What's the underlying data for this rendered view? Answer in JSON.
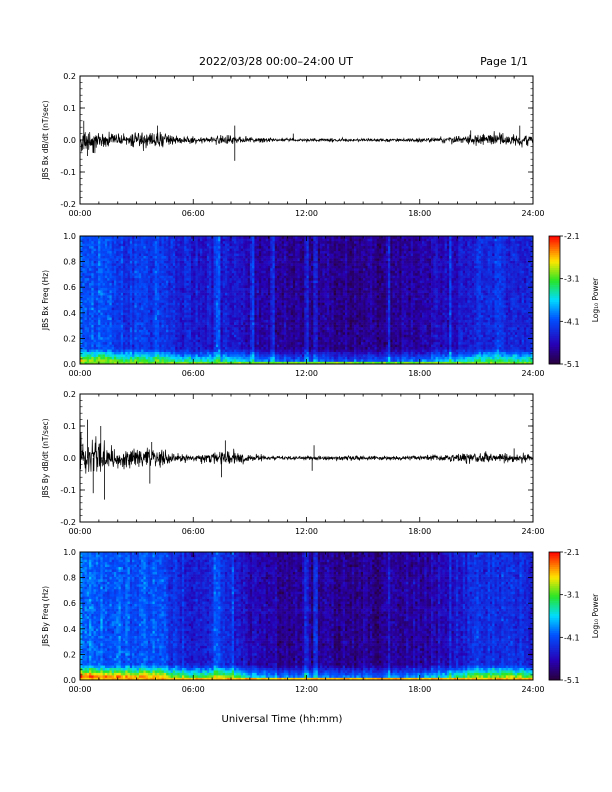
{
  "header": {
    "title": "2022/03/28  00:00–24:00 UT",
    "page": "Page 1/1"
  },
  "x_axis_title": "Universal Time (hh:mm)",
  "chart_data": [
    {
      "type": "line",
      "ylabel": "JBS Bx dB/dt (nT/sec)",
      "xlim": [
        0,
        24
      ],
      "ylim": [
        -0.2,
        0.2
      ],
      "xticks": [
        "00:00",
        "06:00",
        "12:00",
        "18:00",
        "24:00"
      ],
      "yticks": [
        "0.2",
        "0.1",
        "0.0",
        "-0.1",
        "-0.2"
      ],
      "envelope_x": [
        0,
        1,
        2,
        3,
        4,
        5,
        6,
        7,
        8,
        9,
        10,
        11,
        12,
        13,
        14,
        15,
        16,
        17,
        18,
        19,
        20,
        21,
        22,
        23,
        24
      ],
      "envelope_amp": [
        0.045,
        0.04,
        0.028,
        0.032,
        0.036,
        0.022,
        0.014,
        0.016,
        0.022,
        0.012,
        0.008,
        0.006,
        0.005,
        0.008,
        0.007,
        0.006,
        0.006,
        0.007,
        0.01,
        0.012,
        0.016,
        0.025,
        0.03,
        0.028,
        0.02
      ],
      "spikes": [
        [
          0.2,
          0.06
        ],
        [
          0.4,
          -0.05
        ],
        [
          4.1,
          0.045
        ],
        [
          8.2,
          -0.065
        ],
        [
          8.2,
          0.045
        ],
        [
          11.3,
          0.02
        ],
        [
          23.3,
          0.045
        ],
        [
          20.7,
          0.03
        ]
      ]
    },
    {
      "type": "heatmap",
      "ylabel": "JBS Bx Freq (Hz)",
      "xlim": [
        0,
        24
      ],
      "ylim": [
        0,
        1.0
      ],
      "xticks": [
        "00:00",
        "06:00",
        "12:00",
        "18:00",
        "24:00"
      ],
      "yticks": [
        "1.0",
        "0.8",
        "0.6",
        "0.4",
        "0.2",
        "0.0"
      ],
      "colorbar": {
        "label": "Log₁₀ Power",
        "min": -5.1,
        "max": -2.1,
        "ticks": [
          "-2.1",
          "-3.1",
          "-4.1",
          "-5.1"
        ]
      },
      "activity_x": [
        0,
        1,
        2,
        3,
        4,
        5,
        6,
        7,
        8,
        9,
        10,
        11,
        12,
        13,
        14,
        15,
        16,
        17,
        18,
        19,
        20,
        21,
        22,
        23,
        24
      ],
      "activity": [
        0.85,
        0.8,
        0.7,
        0.65,
        0.7,
        0.55,
        0.45,
        0.4,
        0.45,
        0.3,
        0.2,
        0.15,
        0.12,
        0.12,
        0.12,
        0.12,
        0.12,
        0.15,
        0.2,
        0.3,
        0.4,
        0.55,
        0.6,
        0.55,
        0.5
      ],
      "stripes_h": [
        7.2,
        7.4,
        9.1,
        10.2,
        12.0,
        12.5,
        16.4,
        19.6
      ],
      "low_freq_power": -3.0
    },
    {
      "type": "line",
      "ylabel": "JBS By dB/dt (nT/sec)",
      "xlim": [
        0,
        24
      ],
      "ylim": [
        -0.2,
        0.2
      ],
      "xticks": [
        "00:00",
        "06:00",
        "12:00",
        "18:00",
        "24:00"
      ],
      "yticks": [
        "0.2",
        "0.1",
        "0.0",
        "-0.1",
        "-0.2"
      ],
      "envelope_x": [
        0,
        1,
        2,
        3,
        4,
        5,
        6,
        7,
        8,
        9,
        10,
        11,
        12,
        13,
        14,
        15,
        16,
        17,
        18,
        19,
        20,
        21,
        22,
        23,
        24
      ],
      "envelope_amp": [
        0.08,
        0.07,
        0.045,
        0.035,
        0.04,
        0.02,
        0.012,
        0.025,
        0.035,
        0.015,
        0.01,
        0.008,
        0.008,
        0.01,
        0.01,
        0.008,
        0.008,
        0.009,
        0.012,
        0.012,
        0.018,
        0.02,
        0.022,
        0.02,
        0.015
      ],
      "spikes": [
        [
          0.4,
          0.12
        ],
        [
          0.7,
          -0.11
        ],
        [
          1.3,
          -0.13
        ],
        [
          1.1,
          0.1
        ],
        [
          3.7,
          -0.08
        ],
        [
          3.8,
          0.05
        ],
        [
          7.5,
          -0.06
        ],
        [
          7.7,
          0.055
        ],
        [
          12.4,
          0.04
        ],
        [
          12.3,
          -0.04
        ],
        [
          23.0,
          0.03
        ]
      ]
    },
    {
      "type": "heatmap",
      "ylabel": "JBS By Freq (Hz)",
      "xlim": [
        0,
        24
      ],
      "ylim": [
        0,
        1.0
      ],
      "xticks": [
        "00:00",
        "06:00",
        "12:00",
        "18:00",
        "24:00"
      ],
      "yticks": [
        "1.0",
        "0.8",
        "0.6",
        "0.4",
        "0.2",
        "0.0"
      ],
      "colorbar": {
        "label": "Log₁₀ Power",
        "min": -5.1,
        "max": -2.1,
        "ticks": [
          "-2.1",
          "-3.1",
          "-4.1",
          "-5.1"
        ]
      },
      "activity_x": [
        0,
        1,
        2,
        3,
        4,
        5,
        6,
        7,
        8,
        9,
        10,
        11,
        12,
        13,
        14,
        15,
        16,
        17,
        18,
        19,
        20,
        21,
        22,
        23,
        24
      ],
      "activity": [
        1.0,
        0.9,
        0.85,
        0.8,
        0.85,
        0.6,
        0.5,
        0.55,
        0.6,
        0.35,
        0.2,
        0.15,
        0.12,
        0.12,
        0.1,
        0.1,
        0.1,
        0.12,
        0.2,
        0.3,
        0.45,
        0.6,
        0.65,
        0.6,
        0.55
      ],
      "stripes_h": [
        7.2,
        7.4,
        8.1,
        12.0,
        12.5,
        16.4,
        19.6
      ],
      "low_freq_power": -2.6
    }
  ]
}
